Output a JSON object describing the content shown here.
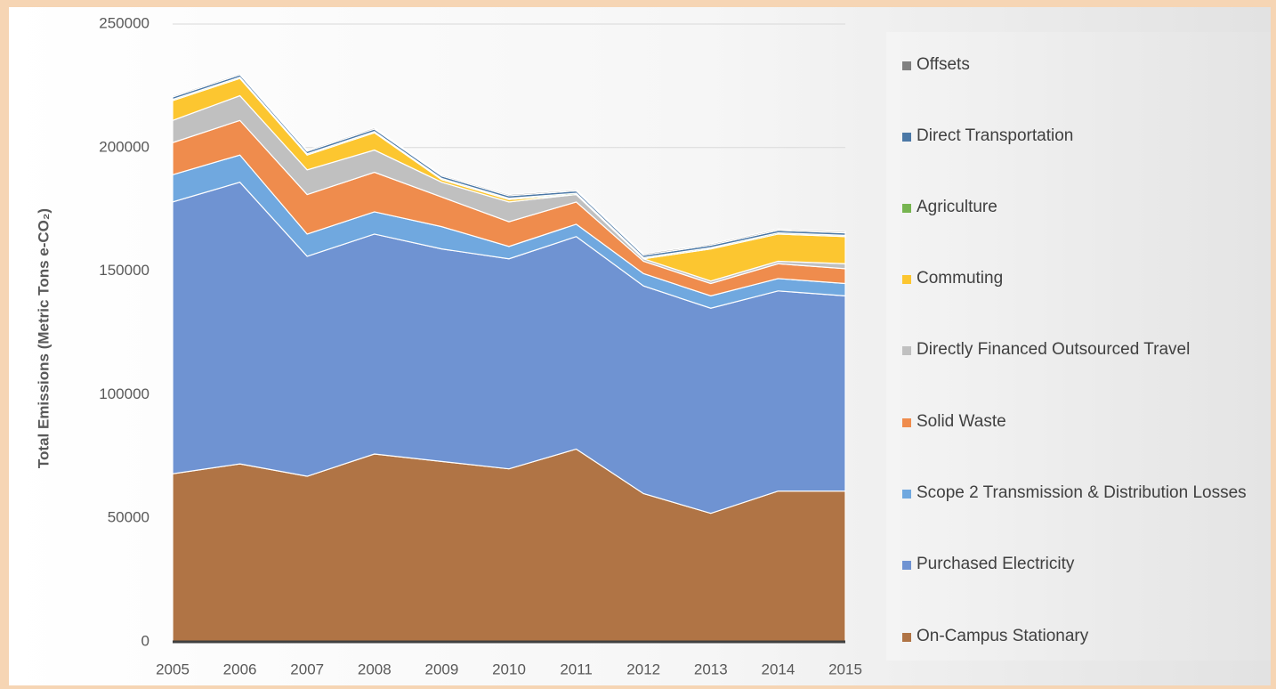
{
  "chart_data": {
    "type": "stacked_area",
    "y_label": "Total Emissions (Metric Tons e-CO₂)",
    "categories": [
      "2005",
      "2006",
      "2007",
      "2008",
      "2009",
      "2010",
      "2011",
      "2012",
      "2013",
      "2014",
      "2015"
    ],
    "ylim": [
      0,
      250000
    ],
    "yticks": [
      0,
      50000,
      100000,
      150000,
      200000,
      250000
    ],
    "grid": true,
    "series": [
      {
        "name": "On-Campus Stationary",
        "color": "#b07445",
        "values": [
          68000,
          72000,
          67000,
          76000,
          73000,
          70000,
          78000,
          60000,
          52000,
          61000,
          61000
        ]
      },
      {
        "name": "Purchased Electricity",
        "color": "#6f93d2",
        "values": [
          110000,
          114000,
          89000,
          89000,
          86000,
          85000,
          86000,
          84000,
          83000,
          81000,
          79000
        ]
      },
      {
        "name": "Scope 2 Transmission & Distribution Losses",
        "color": "#70a8df",
        "values": [
          11000,
          11000,
          9000,
          9000,
          9000,
          5000,
          5000,
          5000,
          5000,
          5000,
          5000
        ]
      },
      {
        "name": "Solid Waste",
        "color": "#ef8c4d",
        "values": [
          13000,
          14000,
          16000,
          16000,
          12000,
          10000,
          9000,
          5000,
          5000,
          6000,
          6000
        ]
      },
      {
        "name": "Directly Financed Outsourced Travel",
        "color": "#c0c0c0",
        "values": [
          9000,
          10000,
          10000,
          9000,
          6000,
          8000,
          3000,
          1000,
          1000,
          1000,
          2000
        ]
      },
      {
        "name": "Commuting",
        "color": "#fcc630",
        "values": [
          8000,
          7000,
          6000,
          7000,
          1000,
          1000,
          0,
          0,
          13000,
          11000,
          11000
        ]
      },
      {
        "name": "Agriculture",
        "color": "#76b450",
        "values": [
          500,
          500,
          500,
          500,
          500,
          500,
          500,
          500,
          500,
          500,
          500
        ]
      },
      {
        "name": "Direct Transportation",
        "color": "#4b78a6",
        "values": [
          1000,
          1000,
          1000,
          1000,
          1000,
          1000,
          1000,
          1000,
          1000,
          1000,
          1000
        ]
      },
      {
        "name": "Offsets",
        "color": "#808080",
        "values": [
          500,
          500,
          500,
          500,
          500,
          500,
          500,
          500,
          500,
          500,
          500
        ]
      }
    ]
  }
}
